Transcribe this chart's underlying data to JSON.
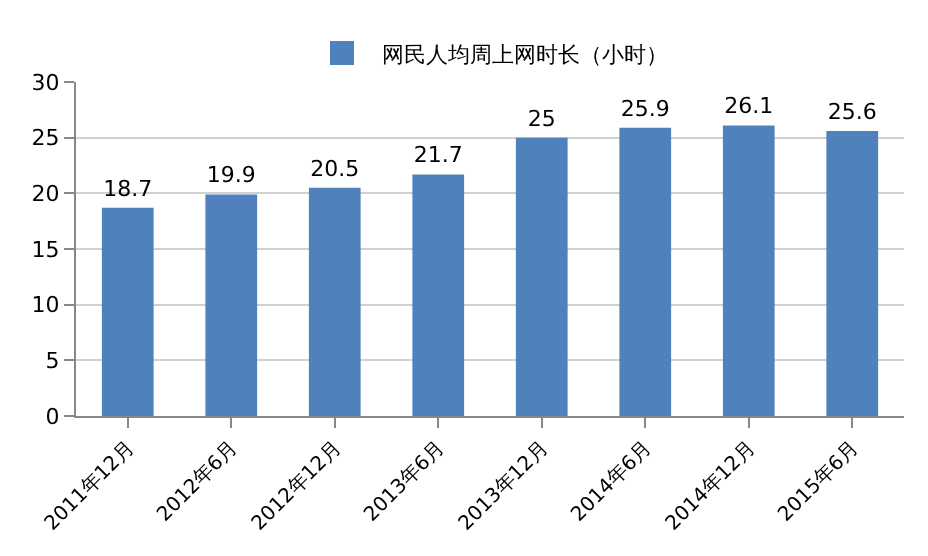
{
  "chart_data": {
    "type": "bar",
    "categories": [
      "2011年12月",
      "2012年6月",
      "2012年12月",
      "2013年6月",
      "2013年12月",
      "2014年6月",
      "2014年12月",
      "2015年6月"
    ],
    "series": [
      {
        "name": "网民人均周上网时长（小时）",
        "color": "#4f81bd",
        "values": [
          18.7,
          19.9,
          20.5,
          21.7,
          25,
          25.9,
          26.1,
          25.6
        ]
      }
    ],
    "ylim": [
      0,
      30
    ],
    "yticks": [
      0,
      5,
      10,
      15,
      20,
      25,
      30
    ],
    "grid": "y",
    "legend": "top",
    "data_labels": true
  }
}
